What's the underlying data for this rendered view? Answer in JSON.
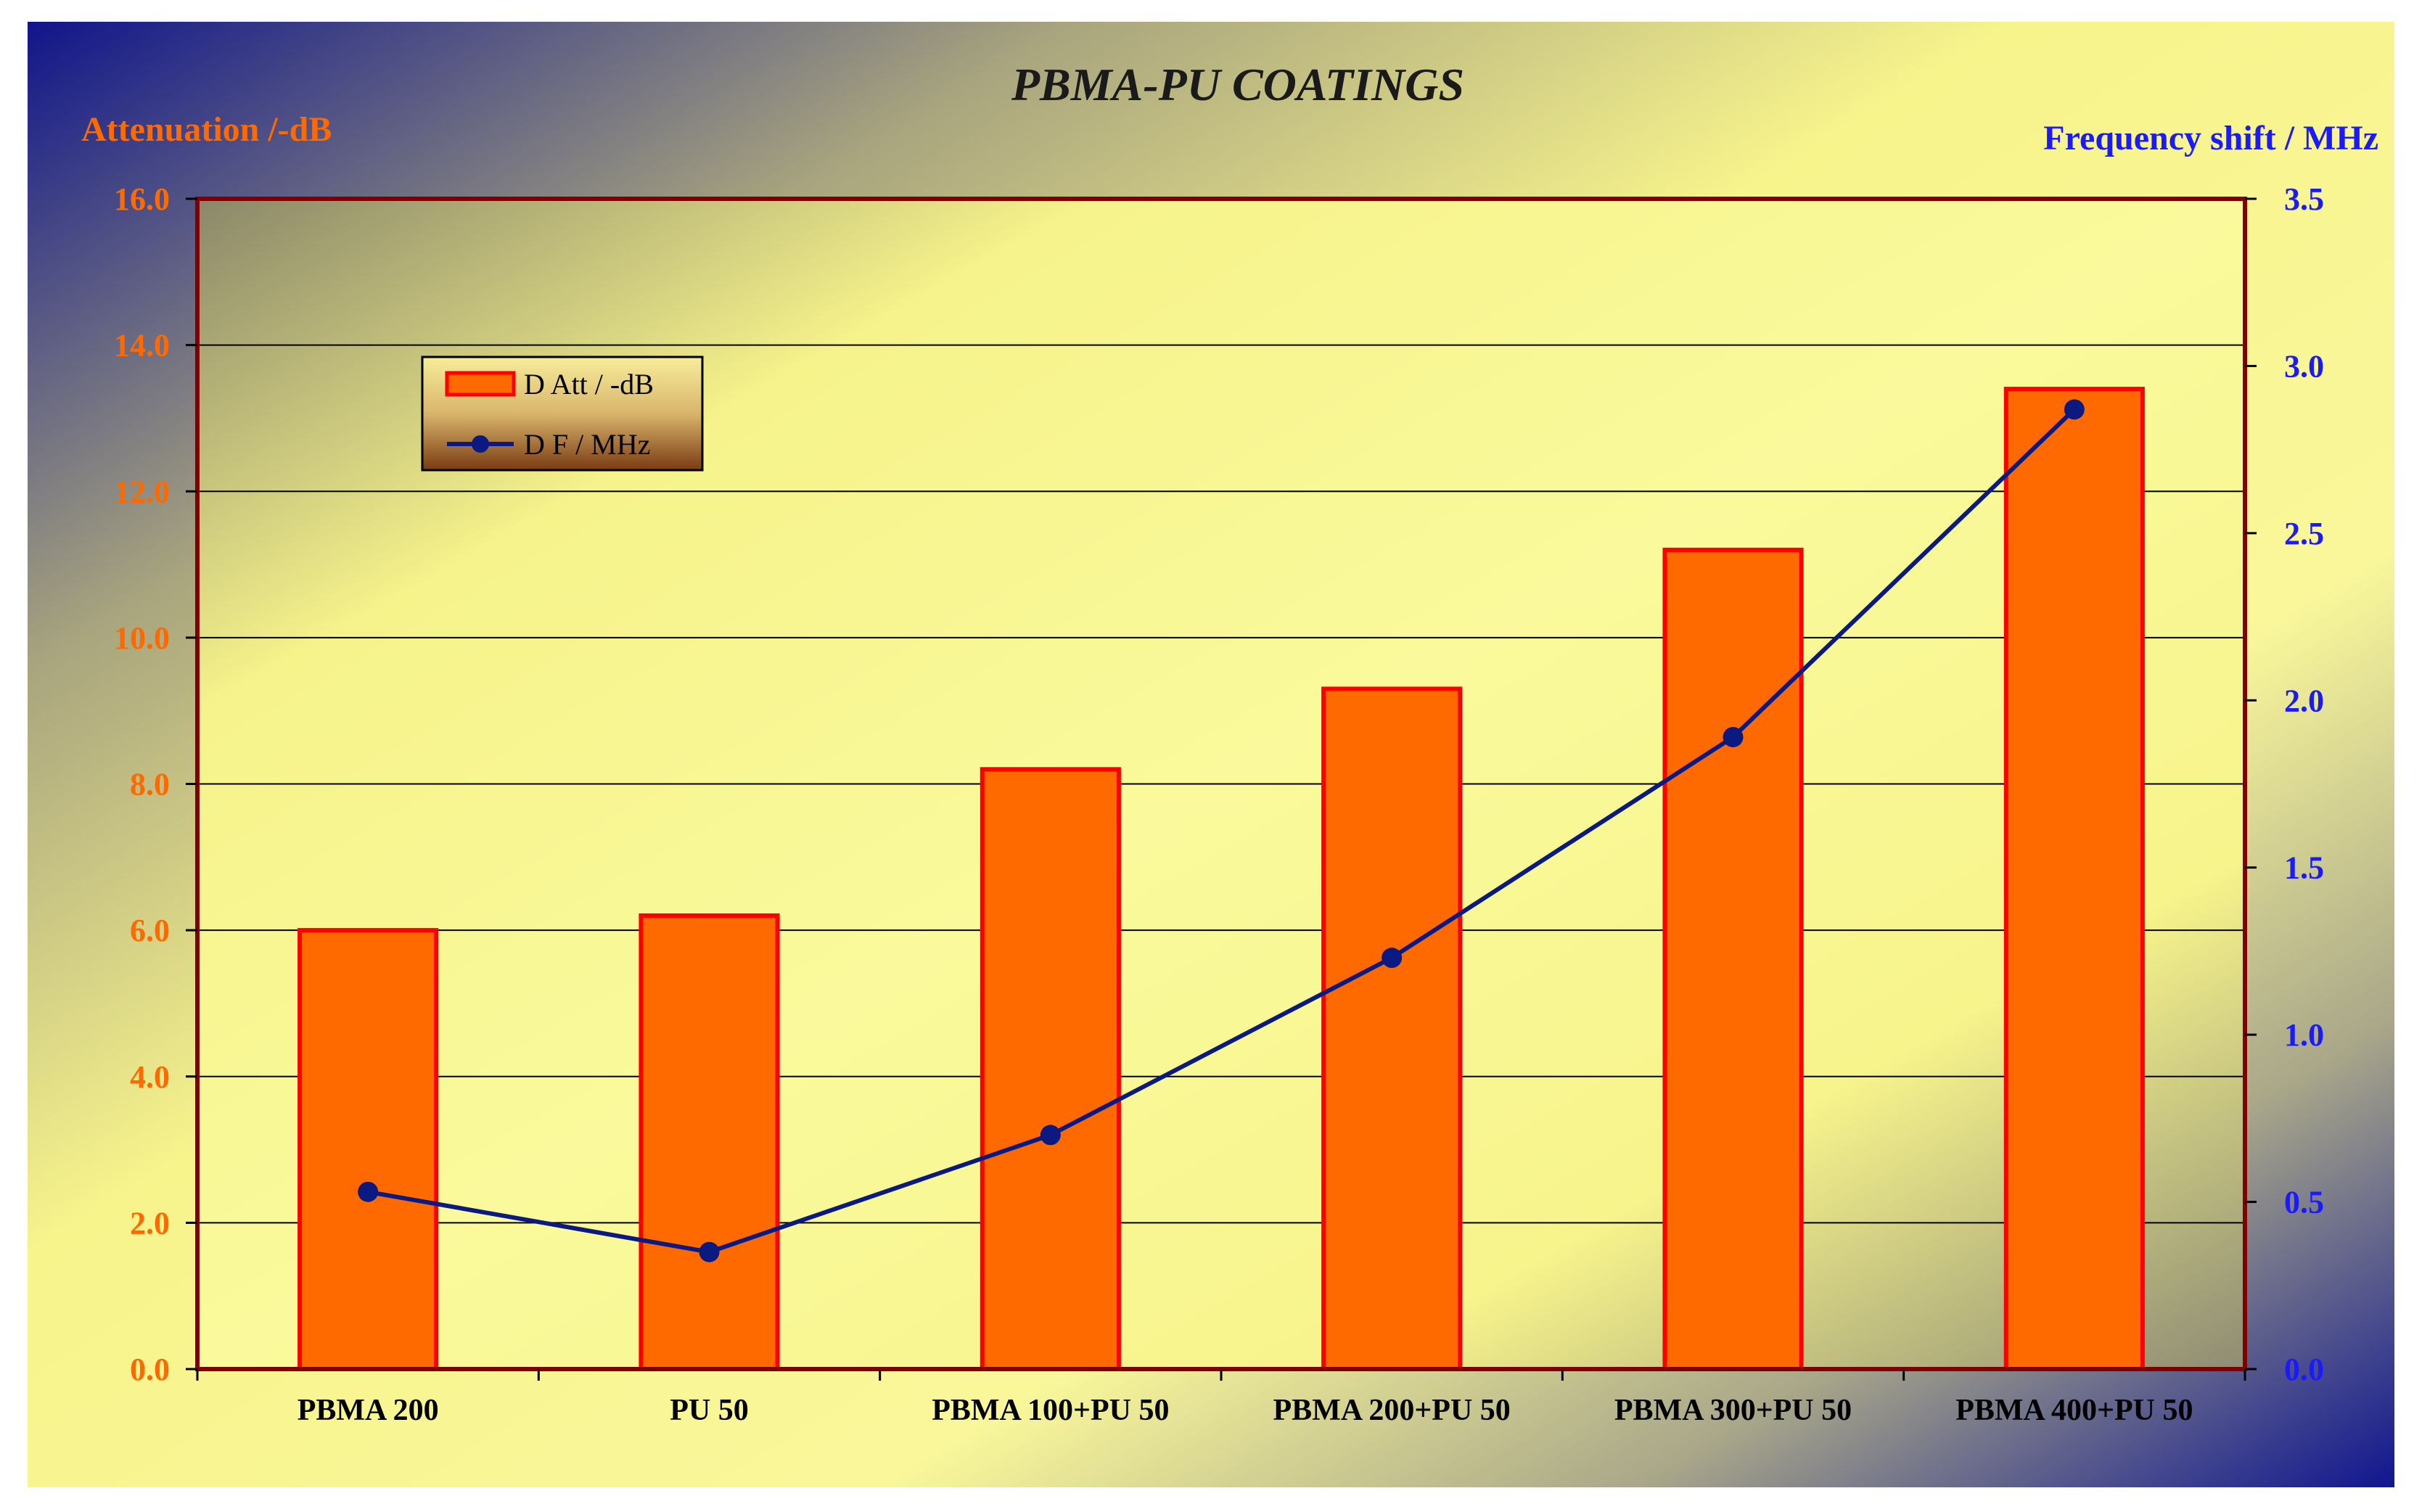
{
  "colors": {
    "bar_fill": "#ff6a00",
    "bar_stroke": "#ff0000",
    "line": "#0a1a80",
    "left_axis_text": "#ff6a00",
    "right_axis_text": "#1a1aff",
    "plot_border": "#800000",
    "gridline": "#000000"
  },
  "chart_data": {
    "type": "bar",
    "title": "PBMA-PU COATINGS",
    "ylabel": "Attenuation /-dB",
    "y2label": "Frequency shift / MHz",
    "categories": [
      "PBMA 200",
      "PU 50",
      "PBMA 100+PU 50",
      "PBMA 200+PU 50",
      "PBMA 300+PU 50",
      "PBMA 400+PU 50"
    ],
    "ylim": [
      0,
      16
    ],
    "y2lim": [
      0,
      3.5
    ],
    "yticks": [
      "0.0",
      "2.0",
      "4.0",
      "6.0",
      "8.0",
      "10.0",
      "12.0",
      "14.0",
      "16.0"
    ],
    "y2ticks": [
      "0.0",
      "0.5",
      "1.0",
      "1.5",
      "2.0",
      "2.5",
      "3.0",
      "3.5"
    ],
    "grid": true,
    "legend_position": "top-left",
    "series": [
      {
        "name": "D Att / -dB",
        "type": "bar",
        "axis": "left",
        "values": [
          6.0,
          6.2,
          8.2,
          9.3,
          11.2,
          13.4
        ]
      },
      {
        "name": "D F / MHz",
        "type": "line",
        "axis": "right",
        "values": [
          0.53,
          0.35,
          0.7,
          1.23,
          1.89,
          2.87
        ]
      }
    ]
  }
}
